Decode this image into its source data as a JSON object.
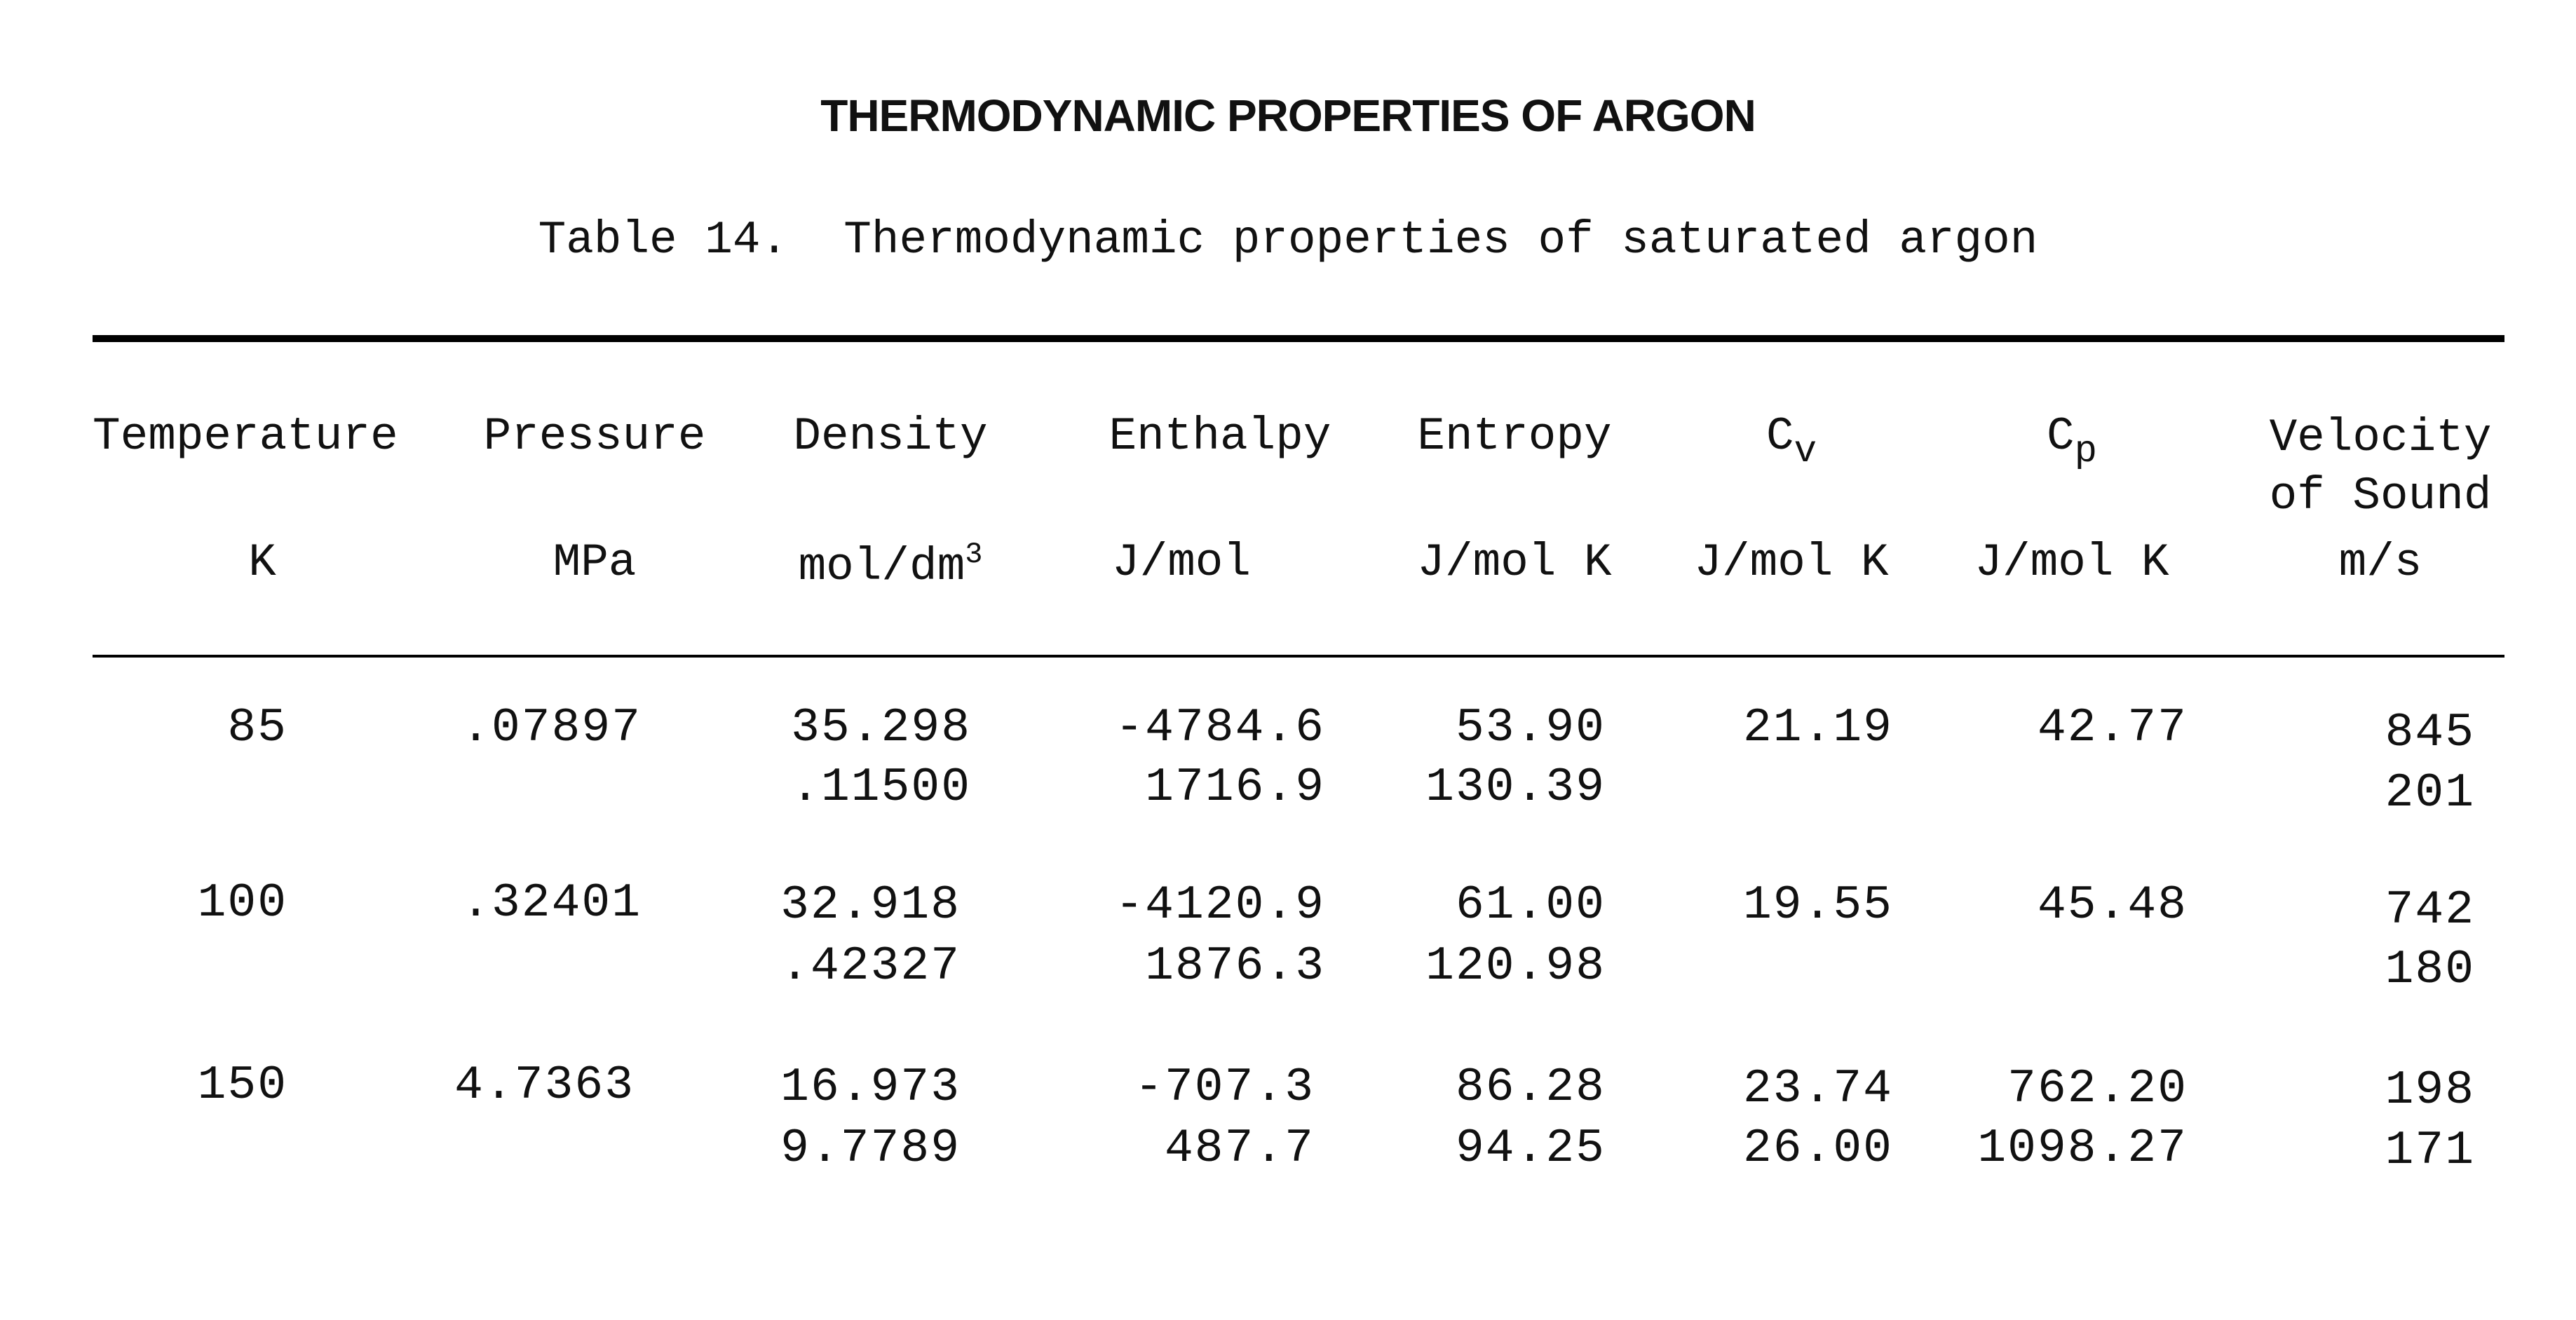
{
  "header": {
    "running_title": "THERMODYNAMIC PROPERTIES OF ARGON",
    "caption": "Table 14.  Thermodynamic properties of saturated argon"
  },
  "columns": [
    {
      "name": "Temperature",
      "unit": "K"
    },
    {
      "name": "Pressure",
      "unit": "MPa"
    },
    {
      "name": "Density",
      "unit": "mol/dm",
      "unit_sup": "3"
    },
    {
      "name": "Enthalpy",
      "unit": "J/mol"
    },
    {
      "name": "Entropy",
      "unit": "J/mol K"
    },
    {
      "name": "C",
      "sub": "v",
      "unit": "J/mol K"
    },
    {
      "name": "C",
      "sub": "p",
      "unit": "J/mol K"
    },
    {
      "name_line1": "Velocity",
      "name_line2": "of Sound",
      "unit": "m/s"
    }
  ],
  "rows": [
    {
      "temperature": "85",
      "pressure": ".07897",
      "liquid": {
        "density": "35.298",
        "enthalpy": "-4784.6",
        "entropy": "53.90",
        "cv": "21.19",
        "cp": "42.77",
        "sound": "845"
      },
      "vapor": {
        "density": ".11500",
        "enthalpy": "1716.9",
        "entropy": "130.39",
        "cv": "",
        "cp": "",
        "sound": "201"
      }
    },
    {
      "temperature": "100",
      "pressure": ".32401",
      "liquid": {
        "density": "32.918",
        "enthalpy": "-4120.9",
        "entropy": "61.00",
        "cv": "19.55",
        "cp": "45.48",
        "sound": "742"
      },
      "vapor": {
        "density": ".42327",
        "enthalpy": "1876.3",
        "entropy": "120.98",
        "cv": "",
        "cp": "",
        "sound": "180"
      }
    },
    {
      "temperature": "150",
      "pressure": "4.7363",
      "liquid": {
        "density": "16.973",
        "enthalpy": "-707.3",
        "entropy": "86.28",
        "cv": "23.74",
        "cp": "762.20",
        "sound": "198"
      },
      "vapor": {
        "density": "9.7789",
        "enthalpy": "487.7",
        "entropy": "94.25",
        "cv": "26.00",
        "cp": "1098.27",
        "sound": "171"
      }
    }
  ]
}
